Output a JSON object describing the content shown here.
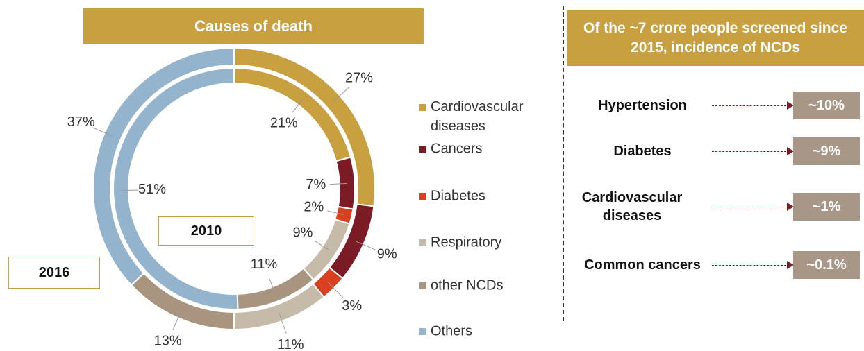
{
  "chart_data": {
    "type": "donut",
    "title": "Causes of death",
    "categories": [
      "Cardiovascular diseases",
      "Cancers",
      "Diabetes",
      "Respiratory",
      "other NCDs",
      "Others"
    ],
    "colors": [
      "#c9a03f",
      "#7b1b25",
      "#d9401f",
      "#c6bba9",
      "#a99480",
      "#94b3cd"
    ],
    "series": [
      {
        "name": "2016",
        "ring": "outer",
        "values": [
          27,
          9,
          3,
          11,
          13,
          37
        ],
        "value_labels": [
          "27%",
          "9%",
          "3%",
          "11%",
          "13%",
          "37%"
        ]
      },
      {
        "name": "2010",
        "ring": "inner",
        "values": [
          21,
          7,
          2,
          9,
          11,
          51
        ],
        "value_labels": [
          "21%",
          "7%",
          "2%",
          "9%",
          "11%",
          "51%"
        ]
      }
    ]
  },
  "screening": {
    "title": "Of the ~7 crore people screened since 2015, incidence of NCDs",
    "items": [
      {
        "label": "Hypertension",
        "value": "~10%"
      },
      {
        "label": "Diabetes",
        "value": "~9%"
      },
      {
        "label": "Cardiovascular diseases",
        "value": "~1%"
      },
      {
        "label": "Common cancers",
        "value": "~0.1%"
      }
    ]
  }
}
